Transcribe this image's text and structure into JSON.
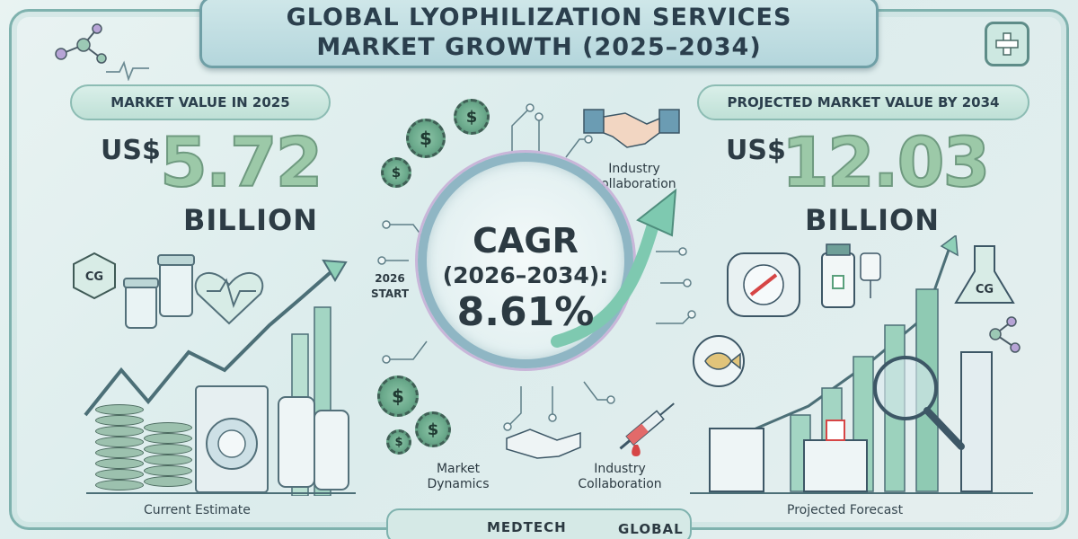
{
  "title": {
    "line1": "GLOBAL LYOPHILIZATION SERVICES",
    "line2": "MARKET GROWTH (2025–2034)"
  },
  "left_panel": {
    "heading": "MARKET VALUE IN 2025",
    "currency": "US$",
    "value": "5.72",
    "unit": "BILLION",
    "caption": "Current Estimate"
  },
  "right_panel": {
    "heading": "PROJECTED MARKET VALUE BY 2034",
    "currency": "US$",
    "value": "12.03",
    "unit": "BILLION",
    "caption": "Projected Forecast"
  },
  "center": {
    "cagr_label": "CAGR",
    "cagr_period": "(2026–2034):",
    "cagr_value": "8.61%",
    "start_label_line1": "2026",
    "start_label_line2": "START",
    "top_collab_line1": "Industry",
    "top_collab_line2": "Collaboration",
    "dynamics_line1": "Market",
    "dynamics_line2": "Dynamics",
    "bottom_collab_line1": "Industry",
    "bottom_collab_line2": "Collaboration"
  },
  "badges": {
    "left_cg": "CG",
    "right_cg": "CG",
    "gear_symbol": "$"
  },
  "bottom": {
    "left_word": "MEDTECH",
    "right_word": "GLOBAL"
  },
  "colors": {
    "accent": "#7fb2ae",
    "title_bg": "#b4d6dc",
    "number_fill": "#9cc9a8",
    "arrow": "#7ec9b0"
  },
  "icons": [
    "molecule-icon",
    "heartbeat-icon",
    "plus-icon",
    "handshake-icon",
    "gear-dollar-icon",
    "syringe-icon",
    "vial-icon",
    "flask-icon",
    "magnifier-icon",
    "hospital-icon",
    "fish-icon",
    "growth-arrow-icon"
  ]
}
